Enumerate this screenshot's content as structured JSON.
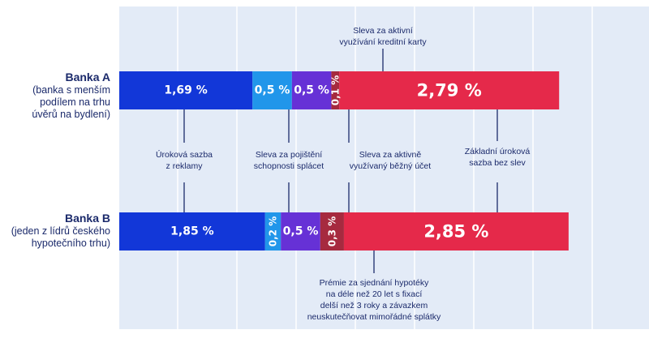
{
  "chart_data": {
    "type": "bar",
    "orientation": "horizontal-stacked",
    "categories": [
      "Banka A",
      "Banka B"
    ],
    "category_descriptions": [
      [
        "(banka s menším",
        "podílem na trhu",
        "úvěrů na bydlení)"
      ],
      [
        "(jeden z lídrů českého",
        "hypotečního trhu)"
      ]
    ],
    "series": [
      {
        "name": "Úroková sazba z reklamy",
        "color": "#1237d8",
        "values": [
          1.69,
          1.85
        ],
        "labels": [
          "1,69 %",
          "1,85 %"
        ],
        "label_sizes": [
          "medium",
          "medium"
        ]
      },
      {
        "name": "Sleva za pojištění schopnosti splácet",
        "color": "#2196ea",
        "values": [
          0.5,
          0.2
        ],
        "labels": [
          "0,5 %",
          "0,2 %"
        ],
        "label_sizes": [
          "medium",
          "rotated"
        ]
      },
      {
        "name": "Sleva za aktivně využívaný běžný účet",
        "color": "#6631d6",
        "values": [
          0.5,
          0.5
        ],
        "labels": [
          "0,5 %",
          "0,5 %"
        ],
        "label_sizes": [
          "medium",
          "medium"
        ]
      },
      {
        "name": "Sleva za aktivní využívání kreditní karty / Prémie",
        "color": "#a62a3f",
        "values": [
          0.1,
          0.3
        ],
        "labels": [
          "0,1 %",
          "0,3 %"
        ],
        "label_sizes": [
          "rotated",
          "rotated"
        ]
      },
      {
        "name": "Základní úroková sazba bez slev",
        "color": "#e5294a",
        "values": [
          2.79,
          2.85
        ],
        "labels": [
          "2,79 %",
          "2,85 %"
        ],
        "label_sizes": [
          "large",
          "large"
        ]
      }
    ],
    "xlim": [
      0,
      6.72
    ],
    "grid": true,
    "annotations": {
      "interest_ad": [
        "Úroková sazba",
        "z reklamy"
      ],
      "insurance": [
        "Sleva za pojištění",
        "schopnosti splácet"
      ],
      "account": [
        "Sleva za aktivně",
        "využívaný běžný účet"
      ],
      "base": [
        "Základní úroková",
        "sazba bez slev"
      ],
      "card": [
        "Sleva za aktivní",
        "využívání kreditní karty"
      ],
      "premium": [
        "Prémie za sjednání hypotéky",
        "na déle než 20 let s fixací",
        "delší než 3 roky a závazkem",
        "neuskutečňovat mimořádné splátky"
      ]
    }
  }
}
